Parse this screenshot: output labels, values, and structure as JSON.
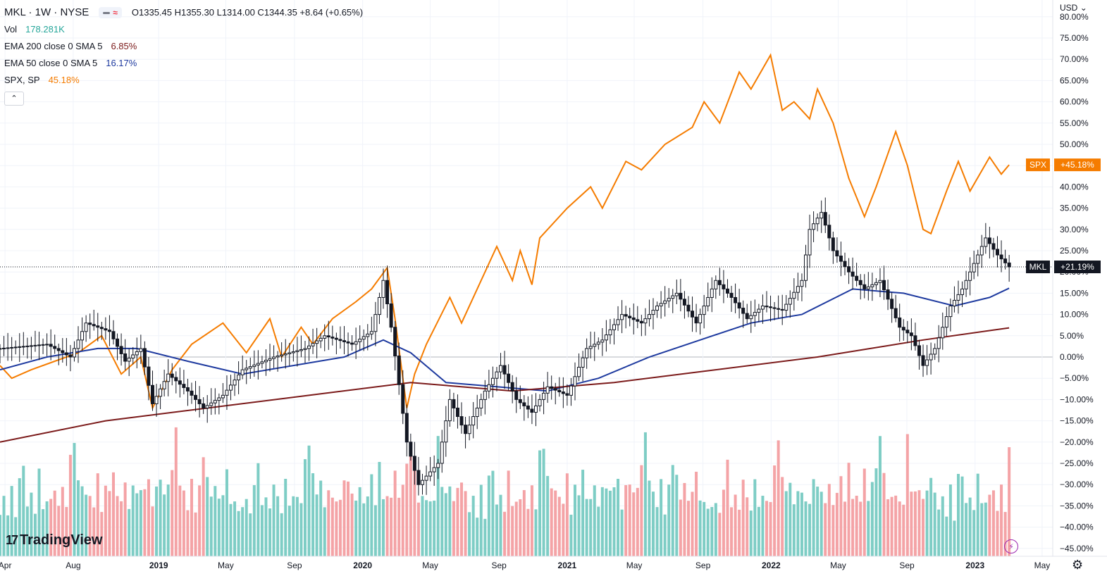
{
  "header": {
    "symbol": "MKL · 1W · NYSE",
    "ohlc_text": "O1335.45 H1355.30 L1314.00 C1344.35 +8.64 (+0.65%)"
  },
  "indicators": [
    {
      "label": "Vol",
      "value": "178.281K",
      "color": "#26a69a"
    },
    {
      "label": "EMA 200 close 0 SMA 5",
      "value": "6.85%",
      "color": "#7b1a1a"
    },
    {
      "label": "EMA 50 close 0 SMA 5",
      "value": "16.17%",
      "color": "#1e3a9f"
    },
    {
      "label": "SPX, SP",
      "value": "45.18%",
      "color": "#f57c00"
    }
  ],
  "currency_label": "USD",
  "brand": {
    "mark": "17",
    "name": "TradingView"
  },
  "colors": {
    "up": "#131722",
    "down": "#131722",
    "vol_up": "#7ecdc5",
    "vol_down": "#f4a3a6",
    "spx": "#f57c00",
    "ema50": "#1e3a9f",
    "ema200": "#7b1a1a"
  },
  "icons": {
    "settings": "gear-icon",
    "collapse": "chevron-up-icon",
    "alert": "lightning-icon"
  },
  "chart_data": {
    "type": "line",
    "interval": "1W",
    "y_unit": "%",
    "ylim": [
      -47,
      82
    ],
    "y_ticks": [
      -45,
      -40,
      -35,
      -30,
      -25,
      -20,
      -15,
      -10,
      -5,
      0,
      5,
      10,
      15,
      20,
      25,
      30,
      35,
      40,
      45,
      50,
      55,
      60,
      65,
      70,
      75,
      80
    ],
    "y_tick_labels": [
      "−45.00%",
      "−40.00%",
      "−35.00%",
      "−30.00%",
      "−25.00%",
      "−20.00%",
      "−15.00%",
      "−10.00%",
      "−5.00%",
      "0.00%",
      "5.00%",
      "10.00%",
      "15.00%",
      "20.00%",
      "25.00%",
      "30.00%",
      "35.00%",
      "40.00%",
      "45.00%",
      "50.00%",
      "55.00%",
      "60.00%",
      "65.00%",
      "70.00%",
      "75.00%",
      "80.00%"
    ],
    "x_range": [
      "2018-03-23",
      "2023-05-20"
    ],
    "x_ticks": [
      {
        "date": "2018-04-01",
        "label": "Apr",
        "bold": false
      },
      {
        "date": "2018-08-01",
        "label": "Aug",
        "bold": false
      },
      {
        "date": "2019-01-01",
        "label": "2019",
        "bold": true
      },
      {
        "date": "2019-05-01",
        "label": "May",
        "bold": false
      },
      {
        "date": "2019-09-01",
        "label": "Sep",
        "bold": false
      },
      {
        "date": "2020-01-01",
        "label": "2020",
        "bold": true
      },
      {
        "date": "2020-05-01",
        "label": "May",
        "bold": false
      },
      {
        "date": "2020-09-01",
        "label": "Sep",
        "bold": false
      },
      {
        "date": "2021-01-01",
        "label": "2021",
        "bold": true
      },
      {
        "date": "2021-05-01",
        "label": "May",
        "bold": false
      },
      {
        "date": "2021-09-01",
        "label": "Sep",
        "bold": false
      },
      {
        "date": "2022-01-01",
        "label": "2022",
        "bold": true
      },
      {
        "date": "2022-05-01",
        "label": "May",
        "bold": false
      },
      {
        "date": "2022-09-01",
        "label": "Sep",
        "bold": false
      },
      {
        "date": "2023-01-01",
        "label": "2023",
        "bold": true
      },
      {
        "date": "2023-05-01",
        "label": "May",
        "bold": false
      }
    ],
    "last_labels": [
      {
        "name": "SPX",
        "text": "+45.18%",
        "value": 45.18,
        "color": "#f57c00"
      },
      {
        "name": "MKL",
        "text": "+21.19%",
        "value": 21.19,
        "color": "#131722"
      }
    ],
    "mkl_close": [
      {
        "date": "2018-03-23",
        "v": 2
      },
      {
        "date": "2018-06-15",
        "v": 3
      },
      {
        "date": "2018-07-27",
        "v": 0
      },
      {
        "date": "2018-08-24",
        "v": 8
      },
      {
        "date": "2018-10-05",
        "v": 6
      },
      {
        "date": "2018-11-02",
        "v": -1
      },
      {
        "date": "2018-11-30",
        "v": 2
      },
      {
        "date": "2018-12-21",
        "v": -11
      },
      {
        "date": "2019-01-18",
        "v": -4
      },
      {
        "date": "2019-02-22",
        "v": -8
      },
      {
        "date": "2019-03-22",
        "v": -12
      },
      {
        "date": "2019-04-26",
        "v": -9
      },
      {
        "date": "2019-05-31",
        "v": -3
      },
      {
        "date": "2019-07-26",
        "v": 0
      },
      {
        "date": "2019-09-20",
        "v": 2
      },
      {
        "date": "2019-10-25",
        "v": 5
      },
      {
        "date": "2019-12-13",
        "v": 3
      },
      {
        "date": "2020-01-17",
        "v": 6
      },
      {
        "date": "2020-02-07",
        "v": 18
      },
      {
        "date": "2020-02-21",
        "v": 7
      },
      {
        "date": "2020-03-20",
        "v": -20
      },
      {
        "date": "2020-04-10",
        "v": -30
      },
      {
        "date": "2020-05-15",
        "v": -25
      },
      {
        "date": "2020-06-05",
        "v": -10
      },
      {
        "date": "2020-07-03",
        "v": -18
      },
      {
        "date": "2020-08-07",
        "v": -8
      },
      {
        "date": "2020-09-04",
        "v": -2
      },
      {
        "date": "2020-10-02",
        "v": -10
      },
      {
        "date": "2020-10-30",
        "v": -13
      },
      {
        "date": "2020-11-27",
        "v": -7
      },
      {
        "date": "2021-01-01",
        "v": -9
      },
      {
        "date": "2021-02-05",
        "v": 2
      },
      {
        "date": "2021-03-05",
        "v": 4
      },
      {
        "date": "2021-04-09",
        "v": 10
      },
      {
        "date": "2021-05-14",
        "v": 8
      },
      {
        "date": "2021-06-11",
        "v": 12
      },
      {
        "date": "2021-07-16",
        "v": 15
      },
      {
        "date": "2021-08-20",
        "v": 8
      },
      {
        "date": "2021-09-24",
        "v": 18
      },
      {
        "date": "2021-10-22",
        "v": 14
      },
      {
        "date": "2021-11-19",
        "v": 9
      },
      {
        "date": "2021-12-17",
        "v": 12
      },
      {
        "date": "2022-01-21",
        "v": 11
      },
      {
        "date": "2022-02-25",
        "v": 18
      },
      {
        "date": "2022-03-11",
        "v": 30
      },
      {
        "date": "2022-04-01",
        "v": 34
      },
      {
        "date": "2022-04-22",
        "v": 25
      },
      {
        "date": "2022-05-20",
        "v": 20
      },
      {
        "date": "2022-06-17",
        "v": 16
      },
      {
        "date": "2022-07-15",
        "v": 18
      },
      {
        "date": "2022-08-19",
        "v": 7
      },
      {
        "date": "2022-09-09",
        "v": 5
      },
      {
        "date": "2022-09-30",
        "v": -2
      },
      {
        "date": "2022-10-21",
        "v": 2
      },
      {
        "date": "2022-11-18",
        "v": 12
      },
      {
        "date": "2022-12-09",
        "v": 16
      },
      {
        "date": "2022-12-30",
        "v": 22
      },
      {
        "date": "2023-01-20",
        "v": 28
      },
      {
        "date": "2023-02-10",
        "v": 24
      },
      {
        "date": "2023-03-03",
        "v": 21.19
      }
    ],
    "series": [
      {
        "name": "SPX",
        "color": "#f57c00",
        "points": [
          {
            "date": "2018-03-23",
            "v": -2
          },
          {
            "date": "2018-04-13",
            "v": -5
          },
          {
            "date": "2018-05-18",
            "v": -3
          },
          {
            "date": "2018-06-29",
            "v": -1
          },
          {
            "date": "2018-08-10",
            "v": 1
          },
          {
            "date": "2018-09-21",
            "v": 5
          },
          {
            "date": "2018-10-26",
            "v": -4
          },
          {
            "date": "2018-11-30",
            "v": 0
          },
          {
            "date": "2018-12-21",
            "v": -12
          },
          {
            "date": "2019-01-25",
            "v": -3
          },
          {
            "date": "2019-03-01",
            "v": 3
          },
          {
            "date": "2019-04-26",
            "v": 8
          },
          {
            "date": "2019-06-07",
            "v": 1
          },
          {
            "date": "2019-07-19",
            "v": 9
          },
          {
            "date": "2019-08-09",
            "v": 0
          },
          {
            "date": "2019-09-13",
            "v": 7
          },
          {
            "date": "2019-10-04",
            "v": 3
          },
          {
            "date": "2019-11-08",
            "v": 9
          },
          {
            "date": "2019-12-20",
            "v": 13
          },
          {
            "date": "2020-01-17",
            "v": 16
          },
          {
            "date": "2020-02-14",
            "v": 21
          },
          {
            "date": "2020-02-28",
            "v": 9
          },
          {
            "date": "2020-03-20",
            "v": -12
          },
          {
            "date": "2020-04-03",
            "v": -4
          },
          {
            "date": "2020-04-24",
            "v": 3
          },
          {
            "date": "2020-06-05",
            "v": 14
          },
          {
            "date": "2020-06-26",
            "v": 8
          },
          {
            "date": "2020-07-24",
            "v": 16
          },
          {
            "date": "2020-08-28",
            "v": 26
          },
          {
            "date": "2020-09-25",
            "v": 18
          },
          {
            "date": "2020-10-09",
            "v": 25
          },
          {
            "date": "2020-10-30",
            "v": 17
          },
          {
            "date": "2020-11-13",
            "v": 28
          },
          {
            "date": "2021-01-01",
            "v": 35
          },
          {
            "date": "2021-02-12",
            "v": 40
          },
          {
            "date": "2021-03-05",
            "v": 35
          },
          {
            "date": "2021-04-16",
            "v": 46
          },
          {
            "date": "2021-05-14",
            "v": 44
          },
          {
            "date": "2021-06-25",
            "v": 50
          },
          {
            "date": "2021-08-13",
            "v": 54
          },
          {
            "date": "2021-09-03",
            "v": 60
          },
          {
            "date": "2021-10-01",
            "v": 55
          },
          {
            "date": "2021-11-05",
            "v": 67
          },
          {
            "date": "2021-11-26",
            "v": 63
          },
          {
            "date": "2021-12-31",
            "v": 71
          },
          {
            "date": "2022-01-21",
            "v": 58
          },
          {
            "date": "2022-02-11",
            "v": 60
          },
          {
            "date": "2022-03-11",
            "v": 56
          },
          {
            "date": "2022-03-25",
            "v": 63
          },
          {
            "date": "2022-04-22",
            "v": 55
          },
          {
            "date": "2022-05-20",
            "v": 42
          },
          {
            "date": "2022-06-17",
            "v": 33
          },
          {
            "date": "2022-07-08",
            "v": 40
          },
          {
            "date": "2022-08-12",
            "v": 53
          },
          {
            "date": "2022-09-02",
            "v": 45
          },
          {
            "date": "2022-09-30",
            "v": 30
          },
          {
            "date": "2022-10-14",
            "v": 29
          },
          {
            "date": "2022-11-11",
            "v": 39
          },
          {
            "date": "2022-12-02",
            "v": 46
          },
          {
            "date": "2022-12-23",
            "v": 39
          },
          {
            "date": "2023-01-27",
            "v": 47
          },
          {
            "date": "2023-02-17",
            "v": 43
          },
          {
            "date": "2023-03-03",
            "v": 45.18
          }
        ]
      },
      {
        "name": "EMA 50",
        "color": "#1e3a9f",
        "points": [
          {
            "date": "2018-03-23",
            "v": -3
          },
          {
            "date": "2018-06-15",
            "v": 0
          },
          {
            "date": "2018-09-14",
            "v": 2
          },
          {
            "date": "2018-11-23",
            "v": 2
          },
          {
            "date": "2019-02-22",
            "v": -1
          },
          {
            "date": "2019-05-31",
            "v": -4
          },
          {
            "date": "2019-08-30",
            "v": -2
          },
          {
            "date": "2019-11-29",
            "v": 0
          },
          {
            "date": "2020-02-07",
            "v": 4
          },
          {
            "date": "2020-03-27",
            "v": 1
          },
          {
            "date": "2020-05-29",
            "v": -6
          },
          {
            "date": "2020-08-28",
            "v": -7
          },
          {
            "date": "2020-11-27",
            "v": -8
          },
          {
            "date": "2021-02-26",
            "v": -5
          },
          {
            "date": "2021-05-28",
            "v": 0
          },
          {
            "date": "2021-08-27",
            "v": 4
          },
          {
            "date": "2021-11-26",
            "v": 8
          },
          {
            "date": "2022-02-25",
            "v": 10
          },
          {
            "date": "2022-05-27",
            "v": 16
          },
          {
            "date": "2022-08-26",
            "v": 15
          },
          {
            "date": "2022-11-25",
            "v": 12
          },
          {
            "date": "2023-01-27",
            "v": 14
          },
          {
            "date": "2023-03-03",
            "v": 16.17
          }
        ]
      },
      {
        "name": "EMA 200",
        "color": "#7b1a1a",
        "points": [
          {
            "date": "2018-03-23",
            "v": -20
          },
          {
            "date": "2018-09-28",
            "v": -15
          },
          {
            "date": "2019-03-29",
            "v": -12
          },
          {
            "date": "2019-09-27",
            "v": -9
          },
          {
            "date": "2020-03-27",
            "v": -6
          },
          {
            "date": "2020-09-25",
            "v": -8
          },
          {
            "date": "2021-03-26",
            "v": -6
          },
          {
            "date": "2021-09-24",
            "v": -3
          },
          {
            "date": "2022-03-25",
            "v": 0
          },
          {
            "date": "2022-09-30",
            "v": 4
          },
          {
            "date": "2023-03-03",
            "v": 6.85
          }
        ]
      }
    ],
    "volume": {
      "values": [
        178.281
      ],
      "unit": "K",
      "note_levels": [
        0.3,
        0.35,
        0.25,
        0.45,
        0.2,
        0.55,
        0.7,
        0.3,
        0.4,
        0.25,
        0.6,
        0.35,
        0.3,
        0.5,
        0.4,
        0.35,
        0.45,
        0.3,
        0.8,
        0.9,
        0.6,
        0.45,
        0.5,
        0.35,
        0.4,
        0.55,
        0.3,
        0.45,
        0.5,
        0.6,
        0.4,
        0.35,
        0.5,
        0.3,
        0.45,
        0.55,
        0.4,
        0.65,
        0.5,
        0.35,
        0.45,
        0.6,
        0.4,
        0.5,
        0.7,
        1.0,
        0.6,
        0.4,
        0.35,
        0.5,
        0.3,
        0.45,
        0.9,
        0.55,
        0.4,
        0.5,
        0.35,
        0.45,
        0.6,
        0.4
      ]
    }
  }
}
